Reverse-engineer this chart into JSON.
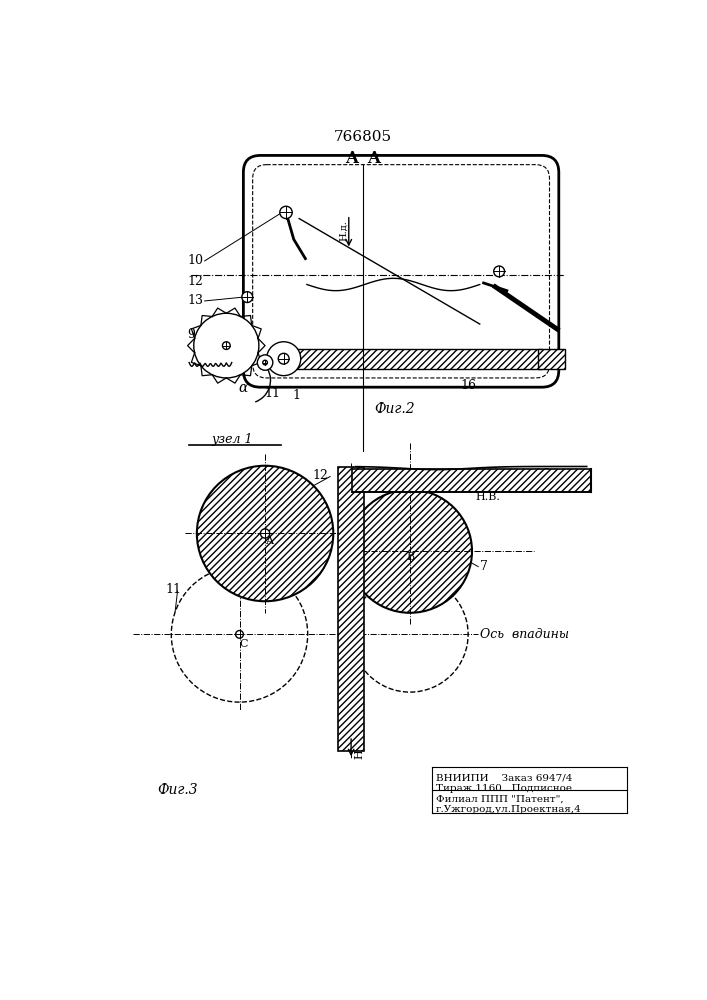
{
  "title": "766805",
  "fig2_label": "Фиг.2",
  "fig3_label": "Фиг.3",
  "uzel_label": "узел 1",
  "vnipi_line1": "ВНИИПИ    Заказ 6947/4",
  "vnipi_line2": "Тираж 1160   Подписное",
  "filial_line1": "Филиал ППП \"Патент\",",
  "filial_line2": "г.Ужгород,ул.Проектная,4",
  "os_vpadiny": "Ось  впадины",
  "hv_label": "Н.В.",
  "hd_label": "Н.д.",
  "background": "#ffffff",
  "line_color": "#000000"
}
